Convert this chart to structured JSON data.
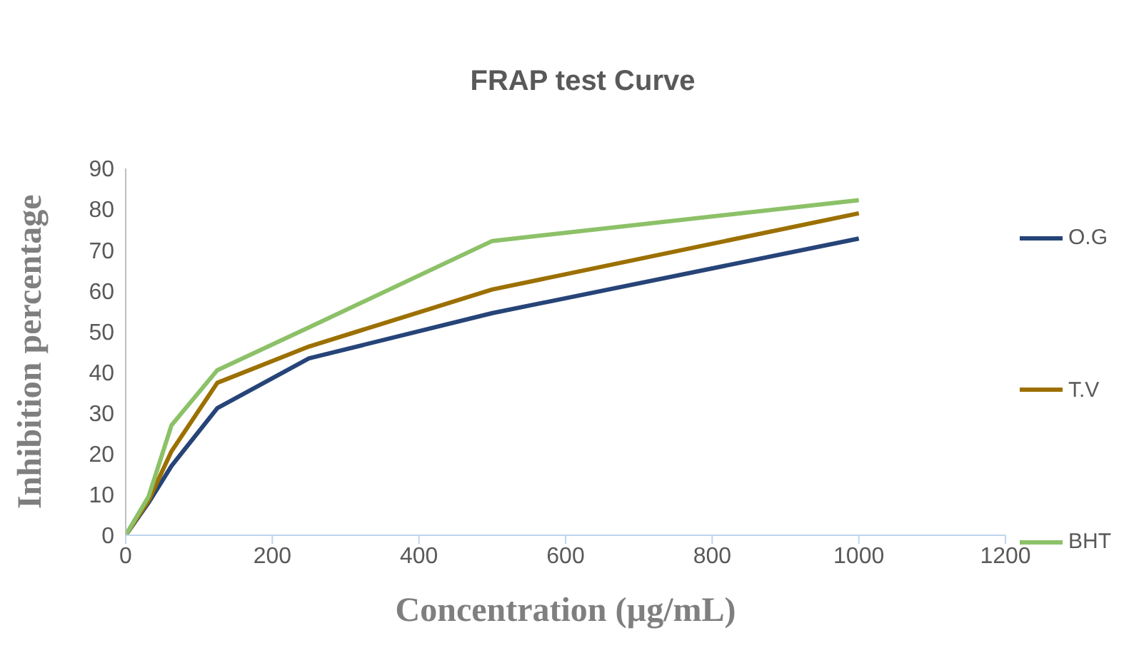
{
  "chart_data": {
    "type": "line",
    "title": "FRAP test Curve",
    "xlabel": "Concentration (µg/mL)",
    "ylabel": "Inhibition percentage",
    "x": [
      0,
      31.25,
      62.5,
      125,
      250,
      500,
      1000
    ],
    "series": [
      {
        "name": "O.G",
        "color": "#264478",
        "values": [
          0,
          8,
          17,
          31.2,
          43.4,
          54.5,
          72.8
        ]
      },
      {
        "name": "T.V",
        "color": "#9c7000",
        "values": [
          0,
          8.5,
          20.6,
          37.4,
          46.3,
          60.3,
          79
        ]
      },
      {
        "name": "BHT",
        "color": "#8cc168",
        "values": [
          0,
          9.5,
          27,
          40.5,
          51,
          72.2,
          82.2
        ]
      }
    ],
    "xlim": [
      0,
      1200
    ],
    "xticks": [
      0,
      200,
      400,
      600,
      800,
      1000,
      1200
    ],
    "ylim": [
      0,
      90
    ],
    "yticks": [
      0,
      10,
      20,
      30,
      40,
      50,
      60,
      70,
      80,
      90
    ],
    "grid": false,
    "legend": "right",
    "marker": "none",
    "line_style": "solid"
  }
}
